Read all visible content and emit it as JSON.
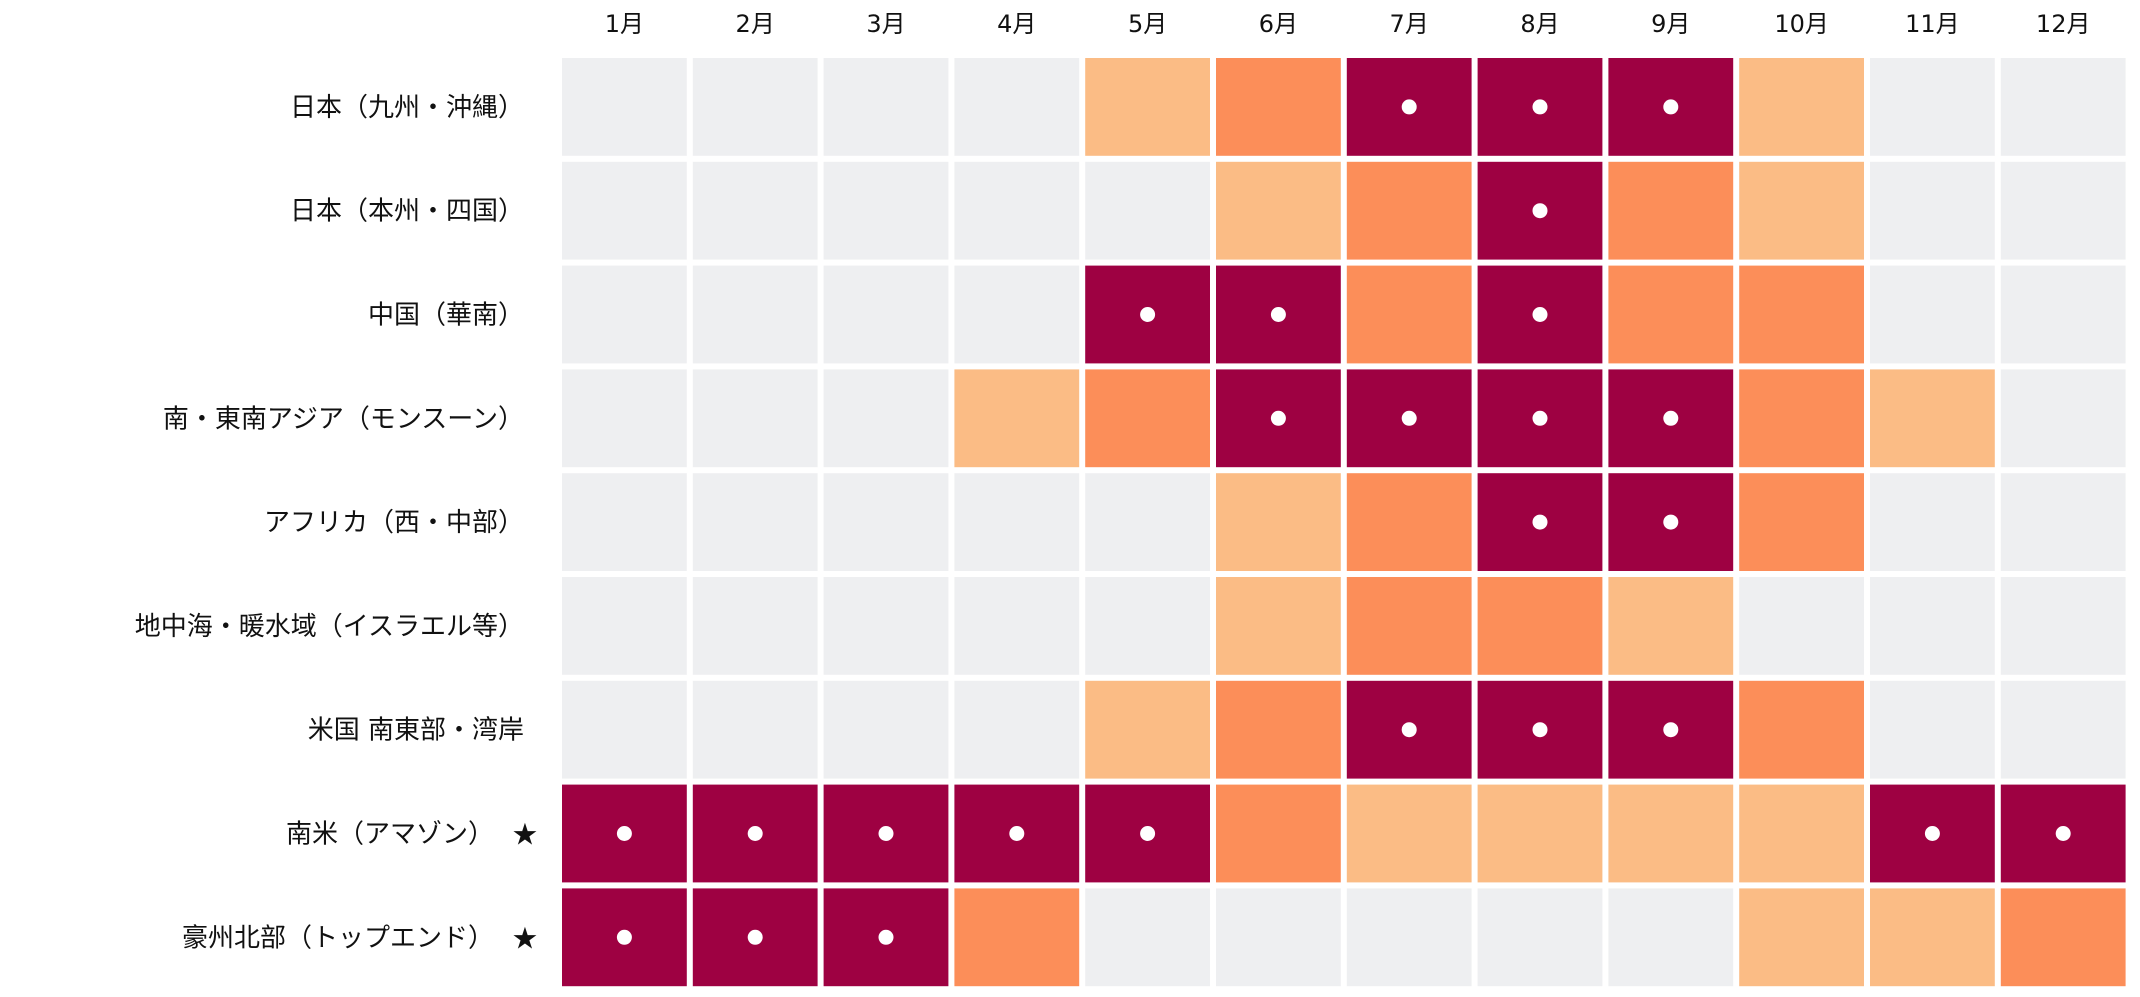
{
  "chart_data": {
    "type": "heatmap",
    "title": "",
    "xlabel": "",
    "ylabel": "",
    "columns": [
      "1月",
      "2月",
      "3月",
      "4月",
      "5月",
      "6月",
      "7月",
      "8月",
      "9月",
      "10月",
      "11月",
      "12月"
    ],
    "rows": [
      {
        "label": "日本（九州・沖縄）",
        "star": "",
        "levels": [
          0,
          0,
          0,
          0,
          1,
          2,
          3,
          3,
          3,
          1,
          0,
          0
        ]
      },
      {
        "label": "日本（本州・四国）",
        "star": "",
        "levels": [
          0,
          0,
          0,
          0,
          0,
          1,
          2,
          3,
          2,
          1,
          0,
          0
        ]
      },
      {
        "label": "中国（華南）",
        "star": "",
        "levels": [
          0,
          0,
          0,
          0,
          3,
          3,
          2,
          3,
          2,
          2,
          0,
          0
        ]
      },
      {
        "label": "南・東南アジア（モンスーン）",
        "star": "",
        "levels": [
          0,
          0,
          0,
          1,
          2,
          3,
          3,
          3,
          3,
          2,
          1,
          0
        ]
      },
      {
        "label": "アフリカ（西・中部）",
        "star": "",
        "levels": [
          0,
          0,
          0,
          0,
          0,
          1,
          2,
          3,
          3,
          2,
          0,
          0
        ]
      },
      {
        "label": "地中海・暖水域（イスラエル等）",
        "star": "",
        "levels": [
          0,
          0,
          0,
          0,
          0,
          1,
          2,
          2,
          1,
          0,
          0,
          0
        ]
      },
      {
        "label": "米国 南東部・湾岸",
        "star": "",
        "levels": [
          0,
          0,
          0,
          0,
          1,
          2,
          3,
          3,
          3,
          2,
          0,
          0
        ]
      },
      {
        "label": "南米（アマゾン）",
        "star": "★",
        "levels": [
          3,
          3,
          3,
          3,
          3,
          2,
          1,
          1,
          1,
          1,
          3,
          3
        ]
      },
      {
        "label": "豪州北部（トップエンド）",
        "star": "★",
        "levels": [
          3,
          3,
          3,
          2,
          0,
          0,
          0,
          0,
          0,
          1,
          1,
          2
        ]
      }
    ],
    "level_colors": [
      "#eeeff1",
      "#fbbc85",
      "#fc8e59",
      "#9e0142"
    ],
    "dot_color": "#ffffff",
    "dot_level": 3,
    "legend": "none",
    "grid": false
  }
}
